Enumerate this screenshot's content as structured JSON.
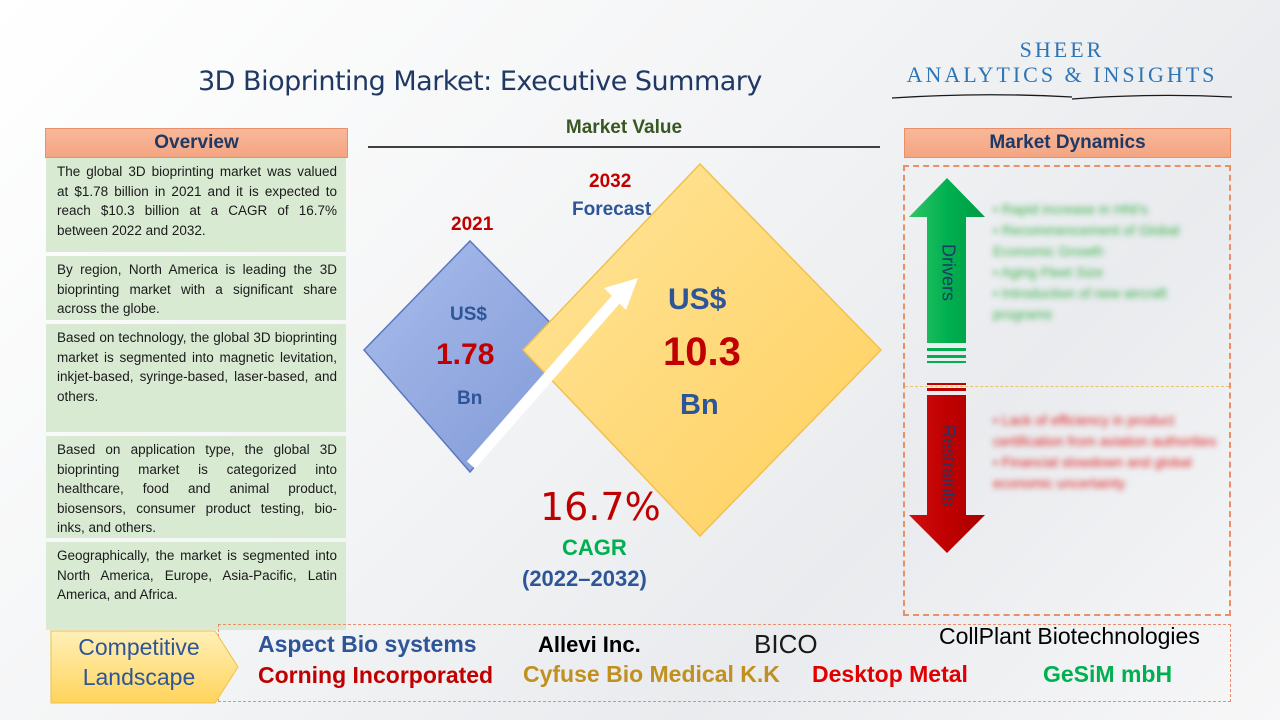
{
  "title": "3D Bioprinting Market: Executive Summary",
  "logo": {
    "line1": "SHEER",
    "line2": "ANALYTICS & INSIGHTS"
  },
  "overview": {
    "heading": "Overview",
    "items": [
      "The global 3D bioprinting market was valued at $1.78 billion in 2021 and it is expected to reach $10.3 billion at a CAGR of 16.7% between 2022 and 2032.",
      "By region, North America is leading the 3D bioprinting market with a significant share across the globe.",
      "Based on technology, the global 3D bioprinting market is segmented into magnetic levitation, inkjet-based, syringe-based, laser-based, and others.",
      "Based on application type, the global 3D bioprinting market is categorized into healthcare, food and animal product, biosensors, consumer product testing, bio-inks, and others.",
      "Geographically, the market is segmented into North America, Europe, Asia-Pacific, Latin America, and Africa."
    ]
  },
  "market_value": {
    "heading": "Market Value",
    "base": {
      "year": "2021",
      "currency": "US$",
      "value": "1.78",
      "unit": "Bn"
    },
    "forecast": {
      "year": "2032",
      "label": "Forecast",
      "currency": "US$",
      "value": "10.3",
      "unit": "Bn"
    },
    "cagr": {
      "value": "16.7%",
      "label": "CAGR",
      "period": "(2022–2032)"
    }
  },
  "market_dynamics": {
    "heading": "Market Dynamics",
    "drivers_label": "Drivers",
    "restraints_label": "Restraints",
    "drivers": [
      "Rapid increase in HNI's",
      "Recommencement of Global Economic Growth",
      "Aging Fleet Size",
      "Introduction of new aircraft programs"
    ],
    "restraints": [
      "Lack of efficiency in product certification from aviation authorities",
      "Financial slowdown and global economic uncertainty"
    ]
  },
  "competitive_landscape": {
    "label_line1": "Competitive",
    "label_line2": "Landscape",
    "companies": [
      "Aspect Bio systems",
      "Allevi Inc.",
      "BICO",
      "CollPlant Biotechnologies",
      "Corning Incorporated",
      "Cyfuse Bio Medical K.K",
      "Desktop Metal",
      "GeSiM mbH"
    ]
  },
  "colors": {
    "navy": "#1f3864",
    "header_orange": "#f4a582",
    "overview_green": "#d9ead3",
    "diamond_blue": "#8fa6dc",
    "diamond_yellow": "#ffd878",
    "value_red": "#c00000",
    "driver_green": "#00b050",
    "restraint_red": "#c00000"
  }
}
